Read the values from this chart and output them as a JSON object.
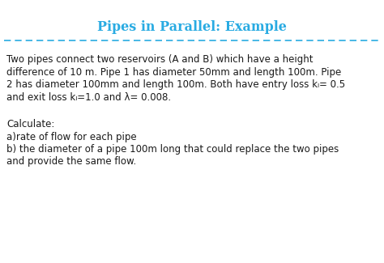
{
  "title": "Pipes in Parallel: Example",
  "title_color": "#29ABE2",
  "title_fontsize": 11.5,
  "bg_color": "#FFFFFF",
  "dashed_line_color": "#29ABE2",
  "body_text_color": "#1a1a1a",
  "body_fontsize": 8.5,
  "paragraph1_lines": [
    "Two pipes connect two reservoirs (A and B) which have a height",
    "difference of 10 m. Pipe 1 has diameter 50mm and length 100m. Pipe",
    "2 has diameter 100mm and length 100m. Both have entry loss kₗ= 0.5",
    "and exit loss kₗ=1.0 and λ= 0.008."
  ],
  "paragraph2_lines": [
    "Calculate:",
    "a)rate of flow for each pipe",
    "b) the diameter of a pipe 100m long that could replace the two pipes",
    "and provide the same flow."
  ]
}
